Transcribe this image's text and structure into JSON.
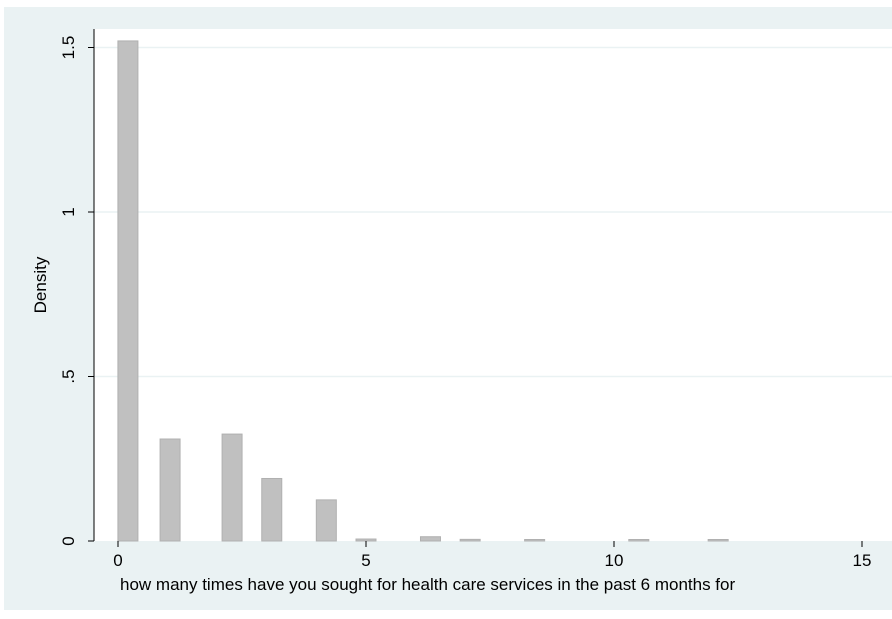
{
  "chart_data": {
    "type": "bar",
    "title": "",
    "xlabel": "how many times have you sought for health care services in the past 6 months for",
    "ylabel": "Density",
    "xlim": [
      -1,
      15.1
    ],
    "ylim": [
      0,
      1.6
    ],
    "x_ticks": [
      {
        "value": 0,
        "label": "0"
      },
      {
        "value": 5,
        "label": "5"
      },
      {
        "value": 10,
        "label": "10"
      },
      {
        "value": 15,
        "label": "15"
      }
    ],
    "y_ticks": [
      {
        "value": 0,
        "label": "0"
      },
      {
        "value": 0.5,
        "label": ".5"
      },
      {
        "value": 1,
        "label": "1"
      },
      {
        "value": 1.5,
        "label": "1.5"
      }
    ],
    "bars": [
      {
        "x": 0.2,
        "value": 1.52
      },
      {
        "x": 1.05,
        "value": 0.31
      },
      {
        "x": 2.3,
        "value": 0.325
      },
      {
        "x": 3.1,
        "value": 0.19
      },
      {
        "x": 4.2,
        "value": 0.125
      },
      {
        "x": 5.0,
        "value": 0.006
      },
      {
        "x": 6.3,
        "value": 0.013
      },
      {
        "x": 7.1,
        "value": 0.005
      },
      {
        "x": 8.4,
        "value": 0.004
      },
      {
        "x": 10.5,
        "value": 0.003
      },
      {
        "x": 12.1,
        "value": 0.003
      }
    ],
    "grid": "horizontal",
    "colors": {
      "bar_fill": "#c0c0c0",
      "bar_stroke": "#b0b0b0",
      "plot_background": "#ffffff",
      "outer_background": "#eaf2f3",
      "grid": "#eaf2f3",
      "axis": "#000000"
    }
  }
}
